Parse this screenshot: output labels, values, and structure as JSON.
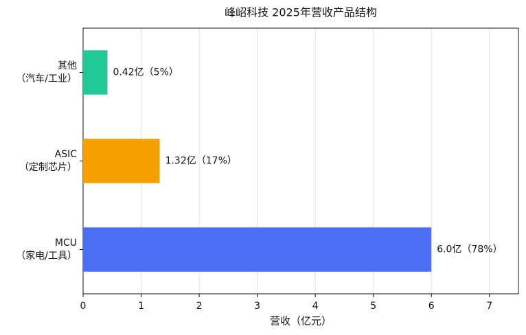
{
  "chart_data": {
    "type": "barh",
    "title": "峰岹科技 2025年营收产品结构",
    "xlabel": "营收（亿元）",
    "categories": [
      "其他\n（汽车/工业）",
      "ASIC\n（定制芯片）",
      "MCU\n（家电/工具）"
    ],
    "values": [
      0.42,
      1.32,
      6.0
    ],
    "value_labels": [
      "0.42亿（5%）",
      "1.32亿（17%）",
      "6.0亿（78%）"
    ],
    "colors": [
      "#20c997",
      "#f59f00",
      "#4c6ef5"
    ],
    "xlim": [
      0,
      7.5
    ],
    "xticks": [
      0,
      1,
      2,
      3,
      4,
      5,
      6,
      7
    ],
    "grid": true
  }
}
